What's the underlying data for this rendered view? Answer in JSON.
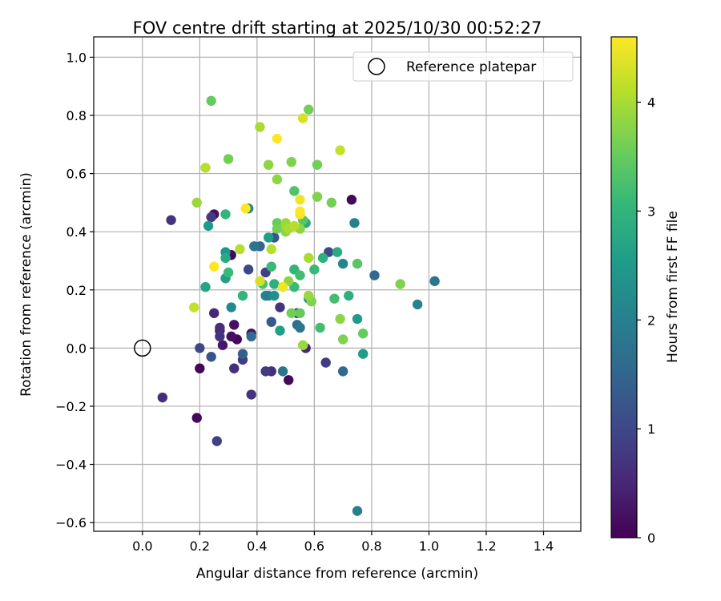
{
  "chart_data": {
    "type": "scatter",
    "title": "FOV centre drift starting at 2025/10/30 00:52:27",
    "xlabel": "Angular distance from reference (arcmin)",
    "ylabel": "Rotation from reference (arcmin)",
    "xlim": [
      -0.17,
      1.53
    ],
    "ylim": [
      -0.63,
      1.07
    ],
    "xticks": [
      0.0,
      0.2,
      0.4,
      0.6,
      0.8,
      1.0,
      1.2,
      1.4
    ],
    "xtick_labels": [
      "0.0",
      "0.2",
      "0.4",
      "0.6",
      "0.8",
      "1.0",
      "1.2",
      "1.4"
    ],
    "yticks": [
      -0.6,
      -0.4,
      -0.2,
      0.0,
      0.2,
      0.4,
      0.6,
      0.8,
      1.0
    ],
    "ytick_labels": [
      "−0.6",
      "−0.4",
      "−0.2",
      "0.0",
      "0.2",
      "0.4",
      "0.6",
      "0.8",
      "1.0"
    ],
    "grid": true,
    "legend": {
      "position": "top-right",
      "entries": [
        "Reference platepar"
      ]
    },
    "reference_point": {
      "label": "Reference platepar",
      "x": 0.0,
      "y": 0.0
    },
    "colorbar": {
      "label": "Hours from first FF file",
      "min": 0,
      "max": 4.6,
      "ticks": [
        0,
        1,
        2,
        3,
        4
      ],
      "tick_labels": [
        "0",
        "1",
        "2",
        "3",
        "4"
      ],
      "colormap": "viridis",
      "colormap_stops": [
        "#440154",
        "#482878",
        "#3e4989",
        "#31688e",
        "#26828e",
        "#1f9e89",
        "#35b779",
        "#6ece58",
        "#b5de2b",
        "#fde725"
      ]
    },
    "points": [
      {
        "x": 0.07,
        "y": -0.17,
        "t": 0.6
      },
      {
        "x": 0.1,
        "y": 0.44,
        "t": 0.7
      },
      {
        "x": 0.18,
        "y": 0.14,
        "t": 4.2
      },
      {
        "x": 0.19,
        "y": 0.5,
        "t": 3.9
      },
      {
        "x": 0.19,
        "y": -0.24,
        "t": 0.1
      },
      {
        "x": 0.2,
        "y": 0.0,
        "t": 1.0
      },
      {
        "x": 0.2,
        "y": -0.07,
        "t": 0.05
      },
      {
        "x": 0.22,
        "y": 0.62,
        "t": 4.1
      },
      {
        "x": 0.22,
        "y": 0.21,
        "t": 2.7
      },
      {
        "x": 0.23,
        "y": 0.42,
        "t": 2.5
      },
      {
        "x": 0.24,
        "y": 0.45,
        "t": 0.8
      },
      {
        "x": 0.24,
        "y": 0.85,
        "t": 3.5
      },
      {
        "x": 0.25,
        "y": 0.28,
        "t": 4.6
      },
      {
        "x": 0.25,
        "y": 0.12,
        "t": 0.5
      },
      {
        "x": 0.24,
        "y": -0.03,
        "t": 1.2
      },
      {
        "x": 0.25,
        "y": 0.46,
        "t": 0.2
      },
      {
        "x": 0.26,
        "y": -0.32,
        "t": 0.9
      },
      {
        "x": 0.27,
        "y": 0.07,
        "t": 0.6
      },
      {
        "x": 0.27,
        "y": 0.04,
        "t": 0.7
      },
      {
        "x": 0.27,
        "y": 0.06,
        "t": 0.4
      },
      {
        "x": 0.28,
        "y": 0.01,
        "t": 0.3
      },
      {
        "x": 0.29,
        "y": 0.46,
        "t": 3.0
      },
      {
        "x": 0.29,
        "y": 0.24,
        "t": 2.6
      },
      {
        "x": 0.29,
        "y": 0.31,
        "t": 2.8
      },
      {
        "x": 0.29,
        "y": 0.33,
        "t": 2.4
      },
      {
        "x": 0.3,
        "y": 0.65,
        "t": 3.6
      },
      {
        "x": 0.3,
        "y": 0.26,
        "t": 3.1
      },
      {
        "x": 0.31,
        "y": 0.14,
        "t": 2.2
      },
      {
        "x": 0.31,
        "y": 0.32,
        "t": 0.1
      },
      {
        "x": 0.31,
        "y": 0.04,
        "t": 0.2
      },
      {
        "x": 0.32,
        "y": 0.08,
        "t": 0.2
      },
      {
        "x": 0.32,
        "y": -0.07,
        "t": 0.6
      },
      {
        "x": 0.33,
        "y": 0.03,
        "t": 0.1
      },
      {
        "x": 0.34,
        "y": 0.34,
        "t": 4.1
      },
      {
        "x": 0.35,
        "y": 0.18,
        "t": 3.0
      },
      {
        "x": 0.35,
        "y": -0.02,
        "t": 1.4
      },
      {
        "x": 0.35,
        "y": -0.04,
        "t": 0.8
      },
      {
        "x": 0.36,
        "y": 0.48,
        "t": 4.6
      },
      {
        "x": 0.37,
        "y": 0.27,
        "t": 1.0
      },
      {
        "x": 0.37,
        "y": 0.48,
        "t": 2.1
      },
      {
        "x": 0.38,
        "y": 0.04,
        "t": 1.6
      },
      {
        "x": 0.38,
        "y": 0.05,
        "t": 0.2
      },
      {
        "x": 0.38,
        "y": -0.16,
        "t": 0.7
      },
      {
        "x": 0.39,
        "y": 0.35,
        "t": 1.8
      },
      {
        "x": 0.41,
        "y": 0.76,
        "t": 4.0
      },
      {
        "x": 0.41,
        "y": 0.35,
        "t": 1.5
      },
      {
        "x": 0.41,
        "y": 0.23,
        "t": 4.3
      },
      {
        "x": 0.42,
        "y": 0.22,
        "t": 3.3
      },
      {
        "x": 0.43,
        "y": 0.26,
        "t": 0.9
      },
      {
        "x": 0.43,
        "y": 0.18,
        "t": 2.0
      },
      {
        "x": 0.43,
        "y": -0.08,
        "t": 0.8
      },
      {
        "x": 0.44,
        "y": 0.63,
        "t": 3.8
      },
      {
        "x": 0.44,
        "y": 0.38,
        "t": 2.6
      },
      {
        "x": 0.44,
        "y": 0.18,
        "t": 1.9
      },
      {
        "x": 0.45,
        "y": 0.09,
        "t": 1.3
      },
      {
        "x": 0.45,
        "y": -0.08,
        "t": 0.6
      },
      {
        "x": 0.45,
        "y": 0.34,
        "t": 4.1
      },
      {
        "x": 0.45,
        "y": 0.28,
        "t": 3.1
      },
      {
        "x": 0.46,
        "y": 0.22,
        "t": 2.9
      },
      {
        "x": 0.46,
        "y": 0.18,
        "t": 2.3
      },
      {
        "x": 0.46,
        "y": 0.38,
        "t": 1.2
      },
      {
        "x": 0.47,
        "y": 0.72,
        "t": 4.6
      },
      {
        "x": 0.47,
        "y": 0.58,
        "t": 3.8
      },
      {
        "x": 0.47,
        "y": 0.43,
        "t": 3.5
      },
      {
        "x": 0.47,
        "y": 0.41,
        "t": 3.6
      },
      {
        "x": 0.48,
        "y": 0.14,
        "t": 0.7
      },
      {
        "x": 0.48,
        "y": 0.06,
        "t": 2.6
      },
      {
        "x": 0.49,
        "y": 0.21,
        "t": 4.5
      },
      {
        "x": 0.49,
        "y": -0.08,
        "t": 1.8
      },
      {
        "x": 0.5,
        "y": 0.42,
        "t": 3.9
      },
      {
        "x": 0.5,
        "y": 0.43,
        "t": 3.9
      },
      {
        "x": 0.5,
        "y": 0.4,
        "t": 3.8
      },
      {
        "x": 0.51,
        "y": 0.23,
        "t": 3.8
      },
      {
        "x": 0.51,
        "y": 0.41,
        "t": 4.0
      },
      {
        "x": 0.51,
        "y": -0.11,
        "t": 0.1
      },
      {
        "x": 0.52,
        "y": 0.64,
        "t": 3.7
      },
      {
        "x": 0.52,
        "y": 0.12,
        "t": 3.6
      },
      {
        "x": 0.53,
        "y": 0.54,
        "t": 3.3
      },
      {
        "x": 0.53,
        "y": 0.42,
        "t": 4.1
      },
      {
        "x": 0.53,
        "y": 0.27,
        "t": 3.0
      },
      {
        "x": 0.53,
        "y": 0.21,
        "t": 3.1
      },
      {
        "x": 0.54,
        "y": 0.12,
        "t": 0.4
      },
      {
        "x": 0.54,
        "y": 0.08,
        "t": 1.7
      },
      {
        "x": 0.55,
        "y": 0.51,
        "t": 4.5
      },
      {
        "x": 0.55,
        "y": 0.47,
        "t": 4.6
      },
      {
        "x": 0.55,
        "y": 0.46,
        "t": 4.5
      },
      {
        "x": 0.55,
        "y": 0.41,
        "t": 3.8
      },
      {
        "x": 0.55,
        "y": 0.25,
        "t": 3.2
      },
      {
        "x": 0.55,
        "y": 0.12,
        "t": 3.5
      },
      {
        "x": 0.55,
        "y": 0.07,
        "t": 1.8
      },
      {
        "x": 0.56,
        "y": 0.79,
        "t": 4.3
      },
      {
        "x": 0.56,
        "y": 0.01,
        "t": 3.9
      },
      {
        "x": 0.56,
        "y": 0.44,
        "t": 3.4
      },
      {
        "x": 0.57,
        "y": 0.43,
        "t": 2.8
      },
      {
        "x": 0.57,
        "y": 0.0,
        "t": 0.5
      },
      {
        "x": 0.58,
        "y": 0.82,
        "t": 3.6
      },
      {
        "x": 0.58,
        "y": 0.31,
        "t": 4.0
      },
      {
        "x": 0.58,
        "y": 0.18,
        "t": 3.9
      },
      {
        "x": 0.58,
        "y": 0.17,
        "t": 2.3
      },
      {
        "x": 0.59,
        "y": 0.16,
        "t": 3.7
      },
      {
        "x": 0.6,
        "y": 0.27,
        "t": 3.1
      },
      {
        "x": 0.61,
        "y": 0.63,
        "t": 3.6
      },
      {
        "x": 0.61,
        "y": 0.52,
        "t": 3.7
      },
      {
        "x": 0.62,
        "y": 0.07,
        "t": 3.2
      },
      {
        "x": 0.63,
        "y": 0.31,
        "t": 2.9
      },
      {
        "x": 0.64,
        "y": -0.05,
        "t": 0.8
      },
      {
        "x": 0.65,
        "y": 0.33,
        "t": 1.0
      },
      {
        "x": 0.66,
        "y": 0.5,
        "t": 3.6
      },
      {
        "x": 0.67,
        "y": 0.17,
        "t": 3.2
      },
      {
        "x": 0.68,
        "y": 0.33,
        "t": 2.8
      },
      {
        "x": 0.69,
        "y": 0.68,
        "t": 4.2
      },
      {
        "x": 0.69,
        "y": 0.1,
        "t": 3.8
      },
      {
        "x": 0.7,
        "y": 0.03,
        "t": 3.7
      },
      {
        "x": 0.7,
        "y": 0.29,
        "t": 2.1
      },
      {
        "x": 0.7,
        "y": -0.08,
        "t": 1.6
      },
      {
        "x": 0.72,
        "y": 0.18,
        "t": 2.9
      },
      {
        "x": 0.73,
        "y": 0.51,
        "t": 0.1
      },
      {
        "x": 0.74,
        "y": 0.43,
        "t": 2.0
      },
      {
        "x": 0.75,
        "y": 0.29,
        "t": 3.4
      },
      {
        "x": 0.75,
        "y": 0.1,
        "t": 2.5
      },
      {
        "x": 0.75,
        "y": -0.56,
        "t": 2.0
      },
      {
        "x": 0.77,
        "y": 0.05,
        "t": 3.5
      },
      {
        "x": 0.77,
        "y": -0.02,
        "t": 2.5
      },
      {
        "x": 0.81,
        "y": 0.25,
        "t": 1.6
      },
      {
        "x": 0.9,
        "y": 0.22,
        "t": 3.7
      },
      {
        "x": 0.96,
        "y": 0.15,
        "t": 2.0
      },
      {
        "x": 1.02,
        "y": 0.23,
        "t": 1.8
      }
    ]
  }
}
